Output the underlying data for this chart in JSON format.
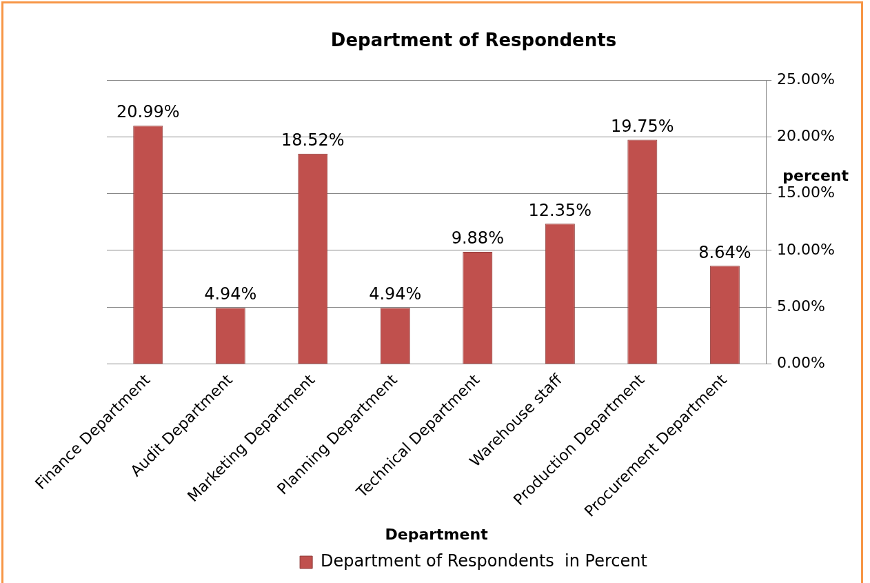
{
  "chart_data": {
    "type": "bar",
    "title": "Department of Respondents",
    "xlabel": "Department",
    "ylabel": "percent",
    "categories": [
      "Finance Department",
      "Audit Department",
      "Marketing Department",
      "Planning Department",
      "Technical Department",
      "Warehouse staff",
      "Production Department",
      "Procurement Department"
    ],
    "series": [
      {
        "name": "Department of Respondents  in Percent",
        "color": "#c0504d",
        "values": [
          20.99,
          4.94,
          18.52,
          4.94,
          9.88,
          12.35,
          19.75,
          8.64
        ],
        "value_labels": [
          "20.99%",
          "4.94%",
          "18.52%",
          "4.94%",
          "9.88%",
          "12.35%",
          "19.75%",
          "8.64%"
        ]
      }
    ],
    "ylim": [
      0,
      25
    ],
    "yticks": [
      {
        "value": 0,
        "label": "0.00%"
      },
      {
        "value": 5,
        "label": "5.00%"
      },
      {
        "value": 10,
        "label": "10.00%"
      },
      {
        "value": 15,
        "label": "15.00%"
      },
      {
        "value": 20,
        "label": "20.00%"
      },
      {
        "value": 25,
        "label": "25.00%"
      }
    ],
    "grid": "y",
    "legend": "bottom"
  }
}
